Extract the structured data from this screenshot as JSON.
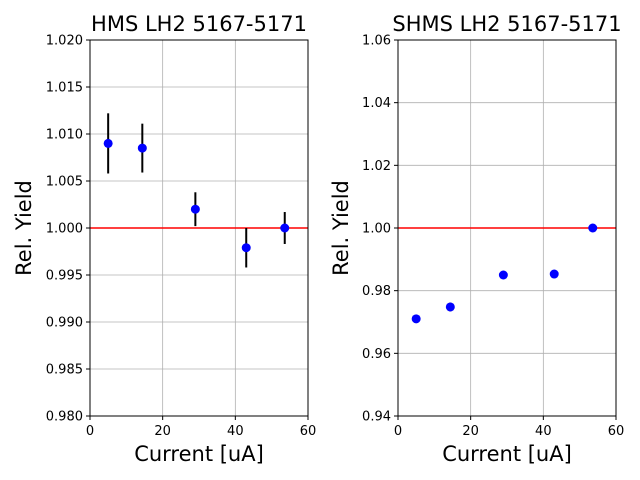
{
  "chart_data": [
    {
      "type": "scatter",
      "title": "HMS LH2 5167-5171",
      "xlabel": "Current [uA]",
      "ylabel": "Rel. Yield",
      "xlim": [
        0,
        60
      ],
      "ylim": [
        0.98,
        1.02
      ],
      "xticks": [
        "0",
        "20",
        "40",
        "60"
      ],
      "yticks": [
        "0.980",
        "0.985",
        "0.990",
        "0.995",
        "1.000",
        "1.005",
        "1.010",
        "1.015",
        "1.020"
      ],
      "grid": true,
      "reference_line": {
        "y": 1.0,
        "color": "#ff0000"
      },
      "marker_color": "#0000ff",
      "errorbar_color": "#000000",
      "points": [
        {
          "x": 5.0,
          "y": 1.009,
          "err": 0.0032
        },
        {
          "x": 14.4,
          "y": 1.0085,
          "err": 0.0026
        },
        {
          "x": 29.0,
          "y": 1.002,
          "err": 0.0018
        },
        {
          "x": 43.0,
          "y": 0.9979,
          "err": 0.0021
        },
        {
          "x": 53.6,
          "y": 1.0,
          "err": 0.0017
        }
      ]
    },
    {
      "type": "scatter",
      "title": "SHMS LH2 5167-5171",
      "xlabel": "Current [uA]",
      "ylabel": "Rel. Yield",
      "xlim": [
        0,
        60
      ],
      "ylim": [
        0.94,
        1.06
      ],
      "xticks": [
        "0",
        "20",
        "40",
        "60"
      ],
      "yticks": [
        "0.94",
        "0.96",
        "0.98",
        "1.00",
        "1.02",
        "1.04",
        "1.06"
      ],
      "grid": true,
      "reference_line": {
        "y": 1.0,
        "color": "#ff0000"
      },
      "marker_color": "#0000ff",
      "errorbar_color": "#000000",
      "points": [
        {
          "x": 5.0,
          "y": 0.971,
          "err": 0.0012
        },
        {
          "x": 14.4,
          "y": 0.9748,
          "err": 0.0014
        },
        {
          "x": 29.0,
          "y": 0.985,
          "err": 0.0013
        },
        {
          "x": 43.0,
          "y": 0.9853,
          "err": 0.0013
        },
        {
          "x": 53.6,
          "y": 1.0,
          "err": 0.0012
        }
      ]
    }
  ]
}
